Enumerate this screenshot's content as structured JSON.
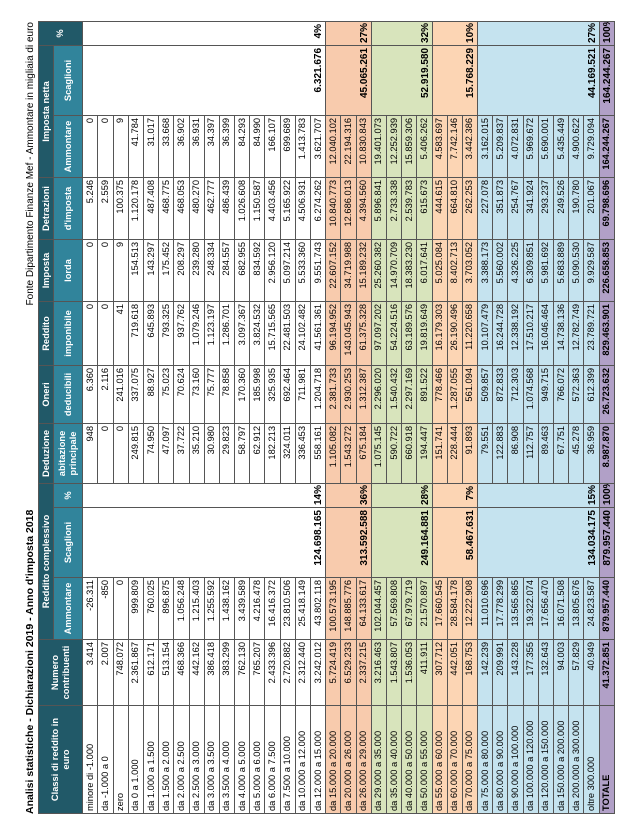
{
  "title": "Analisi statistiche - Dichiarazioni 2019 - Anno d'imposta 2018",
  "source": "Fonte Dipartimento Finanze Mef - Ammontare in migliaia di euro",
  "header": [
    "Classi di reddito in euro",
    "Numero contribuenti",
    "Reddito complessivo",
    "Deduzione",
    "Oneri",
    "Reddito",
    "Imposta",
    "Detrazioni",
    "Imposta netta",
    "%"
  ],
  "subheader": [
    "Ammontare",
    "Scaglioni",
    "%",
    "abitazione principale",
    "deducibili",
    "imponibile",
    "lorda",
    "d'imposta",
    "Ammontare",
    "Scaglioni"
  ],
  "groups": [
    {
      "rows": [
        [
          "minore di -1.000",
          "3.414",
          "-26.311",
          "948",
          "6.360",
          "0",
          "0",
          "5.246",
          "0"
        ],
        [
          "da -1.000 a 0",
          "2.007",
          "-850",
          "0",
          "2.116",
          "0",
          "0",
          "2.559",
          "0"
        ],
        [
          "zero",
          "748.072",
          "0",
          "0",
          "241.016",
          "41",
          "9",
          "100.375",
          "9"
        ],
        [
          "da 0 a 1.000",
          "2.361.867",
          "999.809",
          "249.815",
          "337.075",
          "719.618",
          "154.513",
          "1.120.178",
          "41.784"
        ],
        [
          "da 1.000 a 1.500",
          "612.171",
          "760.025",
          "74.950",
          "88.927",
          "645.893",
          "143.297",
          "487.408",
          "31.017"
        ],
        [
          "da 1.500 a 2.000",
          "513.154",
          "896.875",
          "47.097",
          "75.023",
          "793.325",
          "175.452",
          "468.775",
          "33.668"
        ],
        [
          "da 2.000 a 2.500",
          "468.366",
          "1.056.248",
          "37.722",
          "70.624",
          "937.762",
          "208.297",
          "468.053",
          "36.902"
        ],
        [
          "da 2.500 a 3.000",
          "442.162",
          "1.215.403",
          "35.210",
          "73.160",
          "1.079.246",
          "239.280",
          "480.270",
          "36.931"
        ],
        [
          "da 3.000 a 3.500",
          "386.418",
          "1.255.592",
          "30.980",
          "75.777",
          "1.123.197",
          "248.334",
          "462.777",
          "34.397"
        ],
        [
          "da 3.500 a 4.000",
          "383.299",
          "1.438.162",
          "29.823",
          "78.858",
          "1.286.701",
          "284.557",
          "486.439",
          "36.399"
        ],
        [
          "da 4.000 a 5.000",
          "762.130",
          "3.439.589",
          "58.797",
          "170.360",
          "3.097.367",
          "682.955",
          "1.026.608",
          "84.293"
        ],
        [
          "da 5.000 a 6.000",
          "765.207",
          "4.216.478",
          "62.912",
          "185.998",
          "3.824.532",
          "834.592",
          "1.150.587",
          "84.990"
        ],
        [
          "da 6.000 a 7.500",
          "2.433.396",
          "16.416.372",
          "182.213",
          "325.935",
          "15.715.565",
          "2.956.120",
          "4.403.456",
          "166.107"
        ],
        [
          "da 7.500 a 10.000",
          "2.720.882",
          "23.810.506",
          "324.011",
          "692.464",
          "22.481.503",
          "5.097.214",
          "5.165.922",
          "699.689"
        ],
        [
          "da 10.000 a 12.000",
          "2.312.440",
          "25.418.149",
          "336.453",
          "711.981",
          "24.102.482",
          "5.533.360",
          "4.506.931",
          "1.413.783"
        ],
        [
          "da 12.000 a 15.000",
          "3.242.012",
          "43.802.118",
          "558.161",
          "1.204.718",
          "41.561.361",
          "9.551.743",
          "6.274.262",
          "3.621.707"
        ]
      ],
      "scaglioni_reddito": "124.698.165",
      "pct_reddito": "14%",
      "scaglioni_netta": "6.321.676",
      "pct_netta": "4%"
    },
    {
      "rows": [
        [
          "da 15.000 a 20.000",
          "5.724.419",
          "100.573.195",
          "1.105.082",
          "2.381.733",
          "96.194.952",
          "22.607.152",
          "10.840.773",
          "12.040.102"
        ],
        [
          "da 20.000 a 26.000",
          "6.529.233",
          "148.885.776",
          "1.543.272",
          "2.930.253",
          "143.045.943",
          "34.719.988",
          "12.686.013",
          "22.194.316"
        ],
        [
          "da 26.000 a 29.000",
          "2.337.215",
          "64.133.617",
          "675.184",
          "1.312.387",
          "61.375.328",
          "15.189.232",
          "4.394.560",
          "10.830.843"
        ]
      ],
      "scaglioni_reddito": "313.592.588",
      "pct_reddito": "36%",
      "scaglioni_netta": "45.065.261",
      "pct_netta": "27%"
    },
    {
      "rows": [
        [
          "da 29.000 a 35.000",
          "3.216.463",
          "102.044.457",
          "1.075.145",
          "2.296.020",
          "97.097.202",
          "25.260.382",
          "5.896.841",
          "19.401.073"
        ],
        [
          "da 35.000 a 40.000",
          "1.543.807",
          "57.569.808",
          "590.722",
          "1.540.432",
          "54.224.516",
          "14.970.709",
          "2.733.338",
          "12.252.939"
        ],
        [
          "da 40.000 a 50.000",
          "1.536.053",
          "67.979.719",
          "660.918",
          "2.297.169",
          "63.189.576",
          "18.383.230",
          "2.539.783",
          "15.859.306"
        ],
        [
          "da 50.000 a 55.000",
          "411.911",
          "21.570.897",
          "194.447",
          "891.522",
          "19.819.649",
          "6.017.641",
          "615.673",
          "5.406.262"
        ]
      ],
      "scaglioni_reddito": "249.164.881",
      "pct_reddito": "28%",
      "scaglioni_netta": "52.919.580",
      "pct_netta": "32%"
    },
    {
      "rows": [
        [
          "da 55.000 a 60.000",
          "307.712",
          "17.660.545",
          "151.741",
          "778.466",
          "16.179.303",
          "5.025.084",
          "444.615",
          "4.583.697"
        ],
        [
          "da 60.000 a 70.000",
          "442.051",
          "28.584.178",
          "228.444",
          "1.287.055",
          "26.190.496",
          "8.402.713",
          "664.810",
          "7.742.146"
        ],
        [
          "da 70.000 a 75.000",
          "168.753",
          "12.222.908",
          "91.893",
          "561.094",
          "11.220.658",
          "3.703.052",
          "262.253",
          "3.442.386"
        ]
      ],
      "scaglioni_reddito": "58.467.631",
      "pct_reddito": "7%",
      "scaglioni_netta": "15.768.229",
      "pct_netta": "10%"
    },
    {
      "rows": [
        [
          "da 75.000 a 80.000",
          "142.239",
          "11.010.696",
          "79.551",
          "509.857",
          "10.107.479",
          "3.388.173",
          "227.078",
          "3.162.015"
        ],
        [
          "da 80.000 a 90.000",
          "209.991",
          "17.778.299",
          "122.883",
          "872.833",
          "16.244.728",
          "5.560.002",
          "351.873",
          "5.209.837"
        ],
        [
          "da 90.000 a 100.000",
          "143.228",
          "13.565.865",
          "86.908",
          "712.303",
          "12.338.192",
          "4.326.225",
          "254.767",
          "4.072.831"
        ],
        [
          "da 100.000 a 120.000",
          "177.355",
          "19.322.074",
          "112.757",
          "1.074.568",
          "17.510.217",
          "6.309.851",
          "341.924",
          "5.969.672"
        ],
        [
          "da 120.000 a 150.000",
          "132.643",
          "17.656.470",
          "89.463",
          "949.715",
          "16.046.464",
          "5.981.692",
          "293.237",
          "5.690.001"
        ],
        [
          "da 150.000 a 200.000",
          "94.003",
          "16.071.508",
          "67.751",
          "766.072",
          "14.738.136",
          "5.683.889",
          "249.526",
          "5.435.449"
        ],
        [
          "da 200.000 a 300.000",
          "57.829",
          "13.805.676",
          "45.278",
          "572.363",
          "12.782.749",
          "5.090.530",
          "190.780",
          "4.900.622"
        ],
        [
          "oltre 300.000",
          "40.949",
          "24.823.587",
          "36.959",
          "612.399",
          "23.789.721",
          "9.929.587",
          "201.067",
          "9.729.094"
        ]
      ],
      "scaglioni_reddito": "134.034.175",
      "pct_reddito": "15%",
      "scaglioni_netta": "44.169.521",
      "pct_netta": "27%"
    }
  ],
  "total": {
    "cells": [
      "TOTALE",
      "41.372.851",
      "879.957.440",
      "8.987.870",
      "26.723.632",
      "829.463.901",
      "226.658.853",
      "69.798.696",
      "164.244.267"
    ],
    "scaglioni_reddito": "879.957.440",
    "pct_reddito": "100%",
    "scaglioni_netta": "164.244.267",
    "pct_netta": "100%"
  }
}
